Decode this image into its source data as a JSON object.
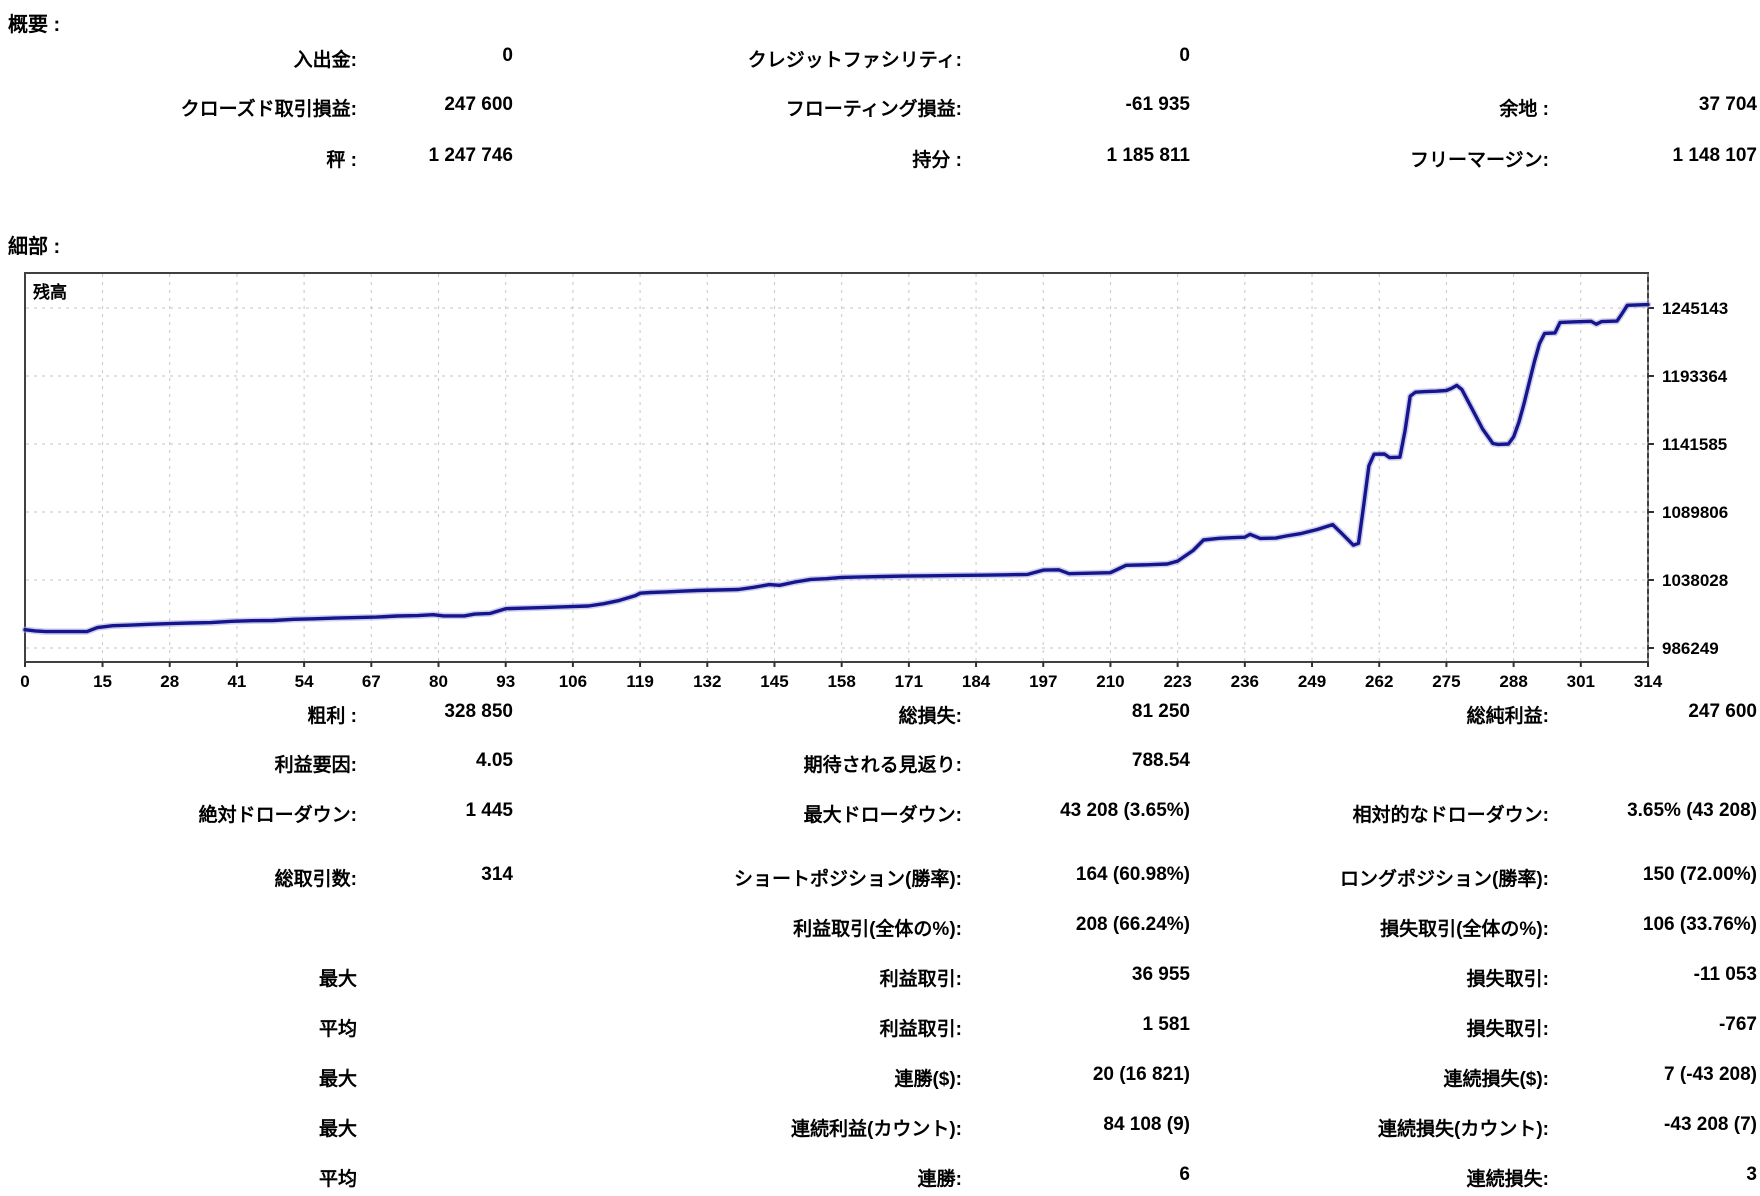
{
  "summary": {
    "section_title": "概要 :",
    "rows": [
      {
        "c1l": "入出金:",
        "c1v": "0",
        "c2l": "クレジットファシリティ:",
        "c2v": "0",
        "c3l": "",
        "c3v": ""
      },
      {
        "c1l": "クローズド取引損益:",
        "c1v": "247 600",
        "c2l": "フローティング損益:",
        "c2v": "-61 935",
        "c3l": "余地 :",
        "c3v": "37 704"
      },
      {
        "c1l": "秤 :",
        "c1v": "1 247 746",
        "c2l": "持分 :",
        "c2v": "1 185 811",
        "c3l": "フリーマージン:",
        "c3v": "1 148 107"
      }
    ]
  },
  "details": {
    "section_title": "細部 :"
  },
  "chart_data": {
    "type": "line",
    "title": "残高",
    "xlabel": "",
    "ylabel": "",
    "x_range": [
      0,
      314
    ],
    "x_ticks": [
      0,
      15,
      28,
      41,
      54,
      67,
      80,
      93,
      106,
      119,
      132,
      145,
      158,
      171,
      184,
      197,
      210,
      223,
      236,
      249,
      262,
      275,
      288,
      301,
      314
    ],
    "y_ticks": [
      1245143,
      1193364,
      1141585,
      1089806,
      1038028,
      986249
    ],
    "grid": "dashed",
    "legend_position": "none",
    "line_color": "#15158f",
    "line_halo_color": "#a9a9d8",
    "grid_color": "#c6c6c6",
    "border_color": "#404040",
    "series": [
      {
        "name": "残高",
        "points": [
          [
            0,
            1000146
          ],
          [
            2,
            999300
          ],
          [
            4,
            998701
          ],
          [
            12,
            998701
          ],
          [
            14,
            1001800
          ],
          [
            17,
            1003200
          ],
          [
            20,
            1003600
          ],
          [
            24,
            1004300
          ],
          [
            28,
            1004800
          ],
          [
            32,
            1005300
          ],
          [
            36,
            1005600
          ],
          [
            40,
            1006600
          ],
          [
            44,
            1007000
          ],
          [
            48,
            1007200
          ],
          [
            52,
            1008100
          ],
          [
            56,
            1008500
          ],
          [
            60,
            1009000
          ],
          [
            64,
            1009400
          ],
          [
            68,
            1009800
          ],
          [
            72,
            1010600
          ],
          [
            76,
            1010900
          ],
          [
            79,
            1011600
          ],
          [
            81,
            1010700
          ],
          [
            85,
            1010700
          ],
          [
            87,
            1012100
          ],
          [
            90,
            1012600
          ],
          [
            93,
            1016200
          ],
          [
            97,
            1016600
          ],
          [
            101,
            1017200
          ],
          [
            105,
            1017700
          ],
          [
            109,
            1018200
          ],
          [
            112,
            1020000
          ],
          [
            115,
            1022500
          ],
          [
            118,
            1026000
          ],
          [
            119,
            1028000
          ],
          [
            121,
            1028500
          ],
          [
            124,
            1029000
          ],
          [
            127,
            1029500
          ],
          [
            130,
            1030000
          ],
          [
            134,
            1030400
          ],
          [
            138,
            1030800
          ],
          [
            141,
            1032500
          ],
          [
            144,
            1034500
          ],
          [
            146,
            1034000
          ],
          [
            149,
            1036500
          ],
          [
            152,
            1038500
          ],
          [
            155,
            1039000
          ],
          [
            158,
            1040000
          ],
          [
            162,
            1040400
          ],
          [
            166,
            1040700
          ],
          [
            170,
            1041000
          ],
          [
            175,
            1041200
          ],
          [
            180,
            1041500
          ],
          [
            185,
            1041700
          ],
          [
            190,
            1042000
          ],
          [
            194,
            1042300
          ],
          [
            197,
            1045600
          ],
          [
            200,
            1045800
          ],
          [
            202,
            1042800
          ],
          [
            206,
            1043200
          ],
          [
            210,
            1043600
          ],
          [
            213,
            1049200
          ],
          [
            217,
            1049600
          ],
          [
            221,
            1050200
          ],
          [
            223,
            1052400
          ],
          [
            226,
            1060500
          ],
          [
            228,
            1068500
          ],
          [
            231,
            1069800
          ],
          [
            234,
            1070300
          ],
          [
            236,
            1070600
          ],
          [
            237,
            1072800
          ],
          [
            239,
            1069700
          ],
          [
            242,
            1069900
          ],
          [
            244,
            1071500
          ],
          [
            247,
            1073500
          ],
          [
            250,
            1076500
          ],
          [
            252,
            1079000
          ],
          [
            253,
            1080200
          ],
          [
            255,
            1072500
          ],
          [
            257,
            1064500
          ],
          [
            258,
            1066000
          ],
          [
            259,
            1095000
          ],
          [
            260,
            1125000
          ],
          [
            261,
            1133800
          ],
          [
            263,
            1134000
          ],
          [
            264,
            1131200
          ],
          [
            266,
            1131500
          ],
          [
            267,
            1152000
          ],
          [
            268,
            1178000
          ],
          [
            269,
            1181000
          ],
          [
            271,
            1181500
          ],
          [
            273,
            1181800
          ],
          [
            275,
            1182300
          ],
          [
            276,
            1184000
          ],
          [
            277,
            1186200
          ],
          [
            278,
            1183000
          ],
          [
            280,
            1168000
          ],
          [
            282,
            1153000
          ],
          [
            284,
            1142000
          ],
          [
            285,
            1141300
          ],
          [
            287,
            1141585
          ],
          [
            288,
            1147000
          ],
          [
            289,
            1158000
          ],
          [
            290,
            1172000
          ],
          [
            291,
            1188000
          ],
          [
            292,
            1204000
          ],
          [
            293,
            1218000
          ],
          [
            294,
            1225800
          ],
          [
            296,
            1226200
          ],
          [
            297,
            1234200
          ],
          [
            300,
            1234600
          ],
          [
            303,
            1235000
          ],
          [
            304,
            1232800
          ],
          [
            305,
            1234800
          ],
          [
            308,
            1235200
          ],
          [
            309,
            1241000
          ],
          [
            310,
            1247200
          ],
          [
            312,
            1247500
          ],
          [
            314,
            1247746
          ]
        ]
      }
    ]
  },
  "stats": {
    "rows": [
      {
        "c1l": "粗利 :",
        "c1v": "328 850",
        "c2l": "総損失:",
        "c2v": "81 250",
        "c3l": "総純利益:",
        "c3v": "247 600"
      },
      {
        "c1l": "利益要因:",
        "c1v": "4.05",
        "c2l": "期待される見返り:",
        "c2v": "788.54",
        "c3l": "",
        "c3v": ""
      },
      {
        "c1l": "絶対ドローダウン:",
        "c1v": "1 445",
        "c2l": "最大ドローダウン:",
        "c2v": "43 208 (3.65%)",
        "c3l": "相対的なドローダウン:",
        "c3v": "3.65% (43 208)"
      },
      {
        "c1l": "総取引数:",
        "c1v": "314",
        "c2l": "ショートポジション(勝率):",
        "c2v": "164 (60.98%)",
        "c3l": "ロングポジション(勝率):",
        "c3v": "150 (72.00%)"
      },
      {
        "c1l": "",
        "c1v": "",
        "c2l": "利益取引(全体の%):",
        "c2v": "208 (66.24%)",
        "c3l": "損失取引(全体の%):",
        "c3v": "106 (33.76%)"
      },
      {
        "c1l": "最大",
        "c1v": "",
        "c2l": "利益取引:",
        "c2v": "36 955",
        "c3l": "損失取引:",
        "c3v": "-11 053"
      },
      {
        "c1l": "平均",
        "c1v": "",
        "c2l": "利益取引:",
        "c2v": "1 581",
        "c3l": "損失取引:",
        "c3v": "-767"
      },
      {
        "c1l": "最大",
        "c1v": "",
        "c2l": "連勝($):",
        "c2v": "20 (16 821)",
        "c3l": "連続損失($):",
        "c3v": "7 (-43 208)"
      },
      {
        "c1l": "最大",
        "c1v": "",
        "c2l": "連続利益(カウント):",
        "c2v": "84 108 (9)",
        "c3l": "連続損失(カウント):",
        "c3v": "-43 208 (7)"
      },
      {
        "c1l": "平均",
        "c1v": "",
        "c2l": "連勝:",
        "c2v": "6",
        "c3l": "連続損失:",
        "c3v": "3"
      }
    ]
  }
}
